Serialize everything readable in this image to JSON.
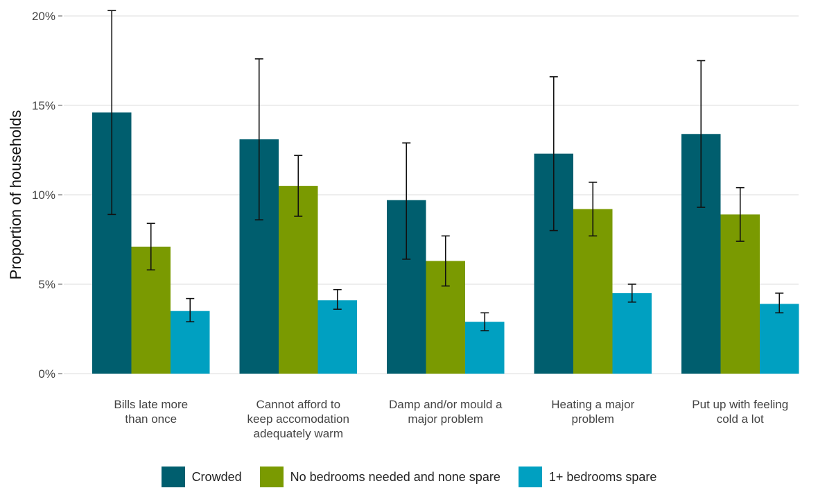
{
  "chart_data": {
    "type": "bar",
    "ylabel": "Proportion of households",
    "xlabel": "",
    "ylim": [
      0,
      20
    ],
    "yticks": [
      0,
      5,
      10,
      15,
      20
    ],
    "ytick_labels": [
      "0%",
      "5%",
      "10%",
      "15%",
      "20%"
    ],
    "grid": true,
    "legend_position": "bottom",
    "categories": [
      [
        "Bills late more",
        "than once"
      ],
      [
        "Cannot afford to",
        "keep accomodation",
        "adequately warm"
      ],
      [
        "Damp and/or mould a",
        "major problem"
      ],
      [
        "Heating a major",
        "problem"
      ],
      [
        "Put up with feeling",
        "cold a lot"
      ]
    ],
    "series": [
      {
        "name": "Crowded",
        "color": "#005e6e",
        "values": [
          14.6,
          13.1,
          9.7,
          12.3,
          13.4
        ],
        "error_low": [
          8.9,
          8.6,
          6.4,
          8.0,
          9.3
        ],
        "error_high": [
          20.3,
          17.6,
          12.9,
          16.6,
          17.5
        ]
      },
      {
        "name": "No bedrooms needed and none spare",
        "color": "#7a9a01",
        "values": [
          7.1,
          10.5,
          6.3,
          9.2,
          8.9
        ],
        "error_low": [
          5.8,
          8.8,
          4.9,
          7.7,
          7.4
        ],
        "error_high": [
          8.4,
          12.2,
          7.7,
          10.7,
          10.4
        ]
      },
      {
        "name": "1+ bedrooms spare",
        "color": "#00a0c1",
        "values": [
          3.5,
          4.1,
          2.9,
          4.5,
          3.9
        ],
        "error_low": [
          2.9,
          3.6,
          2.4,
          4.0,
          3.4
        ],
        "error_high": [
          4.2,
          4.7,
          3.4,
          5.0,
          4.5
        ]
      }
    ]
  }
}
